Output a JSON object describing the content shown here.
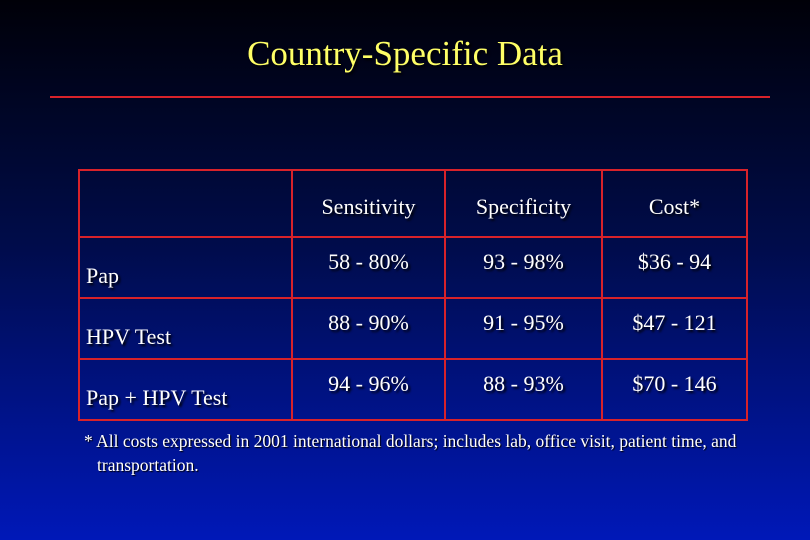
{
  "slide": {
    "title": "Country-Specific Data",
    "table": {
      "headers": [
        "",
        "Sensitivity",
        "Specificity",
        "Cost*"
      ],
      "rows": [
        [
          "Pap",
          "58 - 80%",
          "93 - 98%",
          "$36 - 94"
        ],
        [
          "HPV Test",
          "88 - 90%",
          "91 - 95%",
          "$47 - 121"
        ],
        [
          "Pap + HPV Test",
          "94 - 96%",
          "88 - 93%",
          "$70 - 146"
        ]
      ]
    },
    "footnote": "* All costs expressed in 2001 international dollars; includes lab, office visit, patient time, and transportation."
  },
  "colors": {
    "title": "#ffff66",
    "rule": "#d8222a",
    "grid": "#d8222a",
    "text": "#ffffff"
  }
}
